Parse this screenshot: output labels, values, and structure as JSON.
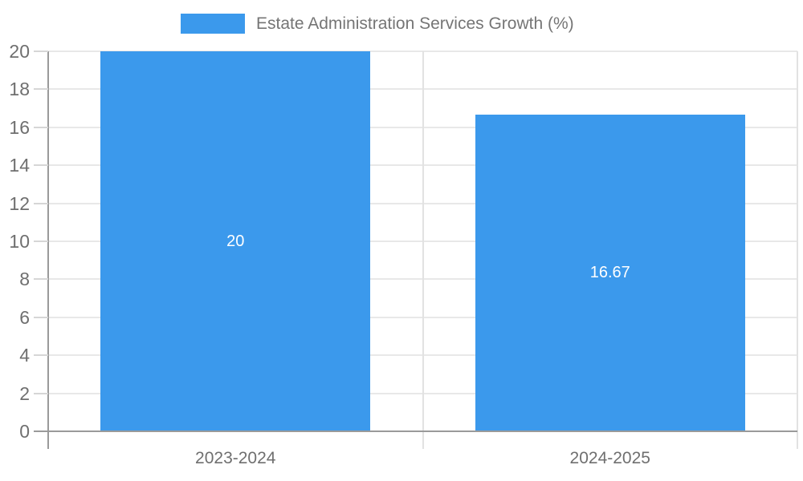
{
  "chart_data": {
    "type": "bar",
    "title": "",
    "categories": [
      "2023-2024",
      "2024-2025"
    ],
    "series": [
      {
        "name": "Estate Administration Services Growth (%)",
        "color": "#3b99ec",
        "values": [
          20,
          16.67
        ]
      }
    ],
    "value_labels": [
      "20",
      "16.67"
    ],
    "xlabel": "",
    "ylabel": "",
    "ylim": [
      0,
      20
    ],
    "yticks": [
      0,
      2,
      4,
      6,
      8,
      10,
      12,
      14,
      16,
      18,
      20
    ],
    "grid": true,
    "legend_position": "top",
    "bar_width_fraction": 0.72
  },
  "legend": {
    "label": "Estate Administration Services Growth (%)"
  },
  "colors": {
    "bar": "#3b99ec",
    "bar-label": "#ffffff",
    "grid": "#e8e8e8",
    "divider": "#e2e2e2",
    "axis": "#9a9a9a",
    "tick": "#d6d6d6",
    "text": "#6f6f6f",
    "legend-text": "#757575",
    "background": "#ffffff"
  }
}
